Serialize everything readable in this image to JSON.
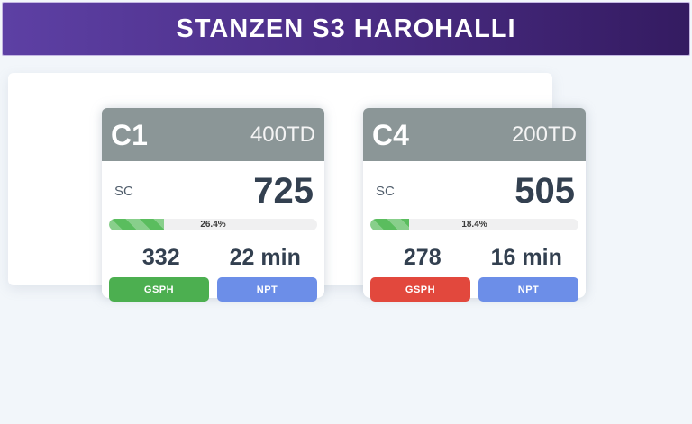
{
  "header": {
    "title": "STANZEN S3 HAROHALLI"
  },
  "cards": [
    {
      "machine_id": "C1",
      "capacity": "400TD",
      "metric_label": "SC",
      "metric_value": "725",
      "progress": {
        "pct_label": "26.4%"
      },
      "gsph": {
        "value": "332",
        "label": "GSPH",
        "color": "#4caf50"
      },
      "npt": {
        "value": "22 min",
        "label": "NPT",
        "color": "#6c8ee8"
      }
    },
    {
      "machine_id": "C4",
      "capacity": "200TD",
      "metric_label": "SC",
      "metric_value": "505",
      "progress": {
        "pct_label": "18.4%"
      },
      "gsph": {
        "value": "278",
        "label": "GSPH",
        "color": "#e2483d"
      },
      "npt": {
        "value": "16 min",
        "label": "NPT",
        "color": "#6c8ee8"
      }
    }
  ]
}
